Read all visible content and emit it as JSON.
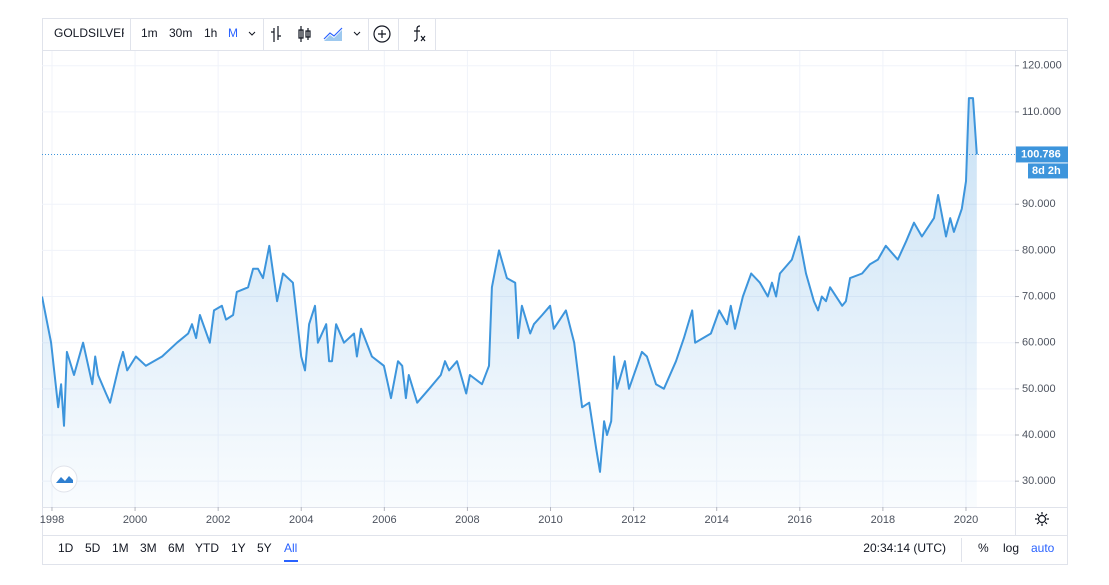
{
  "toolbar": {
    "symbol": "GOLDSILVER",
    "intervals": [
      "1m",
      "30m",
      "1h",
      "M"
    ]
  },
  "footer": {
    "ranges": [
      "1D",
      "5D",
      "1M",
      "3M",
      "6M",
      "YTD",
      "1Y",
      "5Y",
      "All"
    ],
    "clock": "20:34:14 (UTC)",
    "scale_options": [
      "%",
      "log",
      "auto"
    ]
  },
  "chart_data": {
    "type": "area",
    "color": "#3d95dc",
    "x": [
      1997.76,
      1997.98,
      1998.15,
      1998.22,
      1998.29,
      1998.36,
      1998.53,
      1998.75,
      1998.97,
      1999.04,
      1999.11,
      1999.3,
      1999.4,
      1999.61,
      1999.71,
      1999.81,
      2000.02,
      2000.26,
      2000.65,
      2001.01,
      2001.28,
      2001.37,
      2001.47,
      2001.56,
      2001.8,
      2001.9,
      2002.09,
      2002.19,
      2002.36,
      2002.45,
      2002.72,
      2002.84,
      2002.96,
      2003.08,
      2003.23,
      2003.42,
      2003.56,
      2003.8,
      2004.0,
      2004.09,
      2004.19,
      2004.33,
      2004.4,
      2004.6,
      2004.67,
      2004.74,
      2004.84,
      2005.03,
      2005.27,
      2005.34,
      2005.44,
      2005.7,
      2005.99,
      2006.16,
      2006.33,
      2006.43,
      2006.52,
      2006.59,
      2006.79,
      2007.08,
      2007.36,
      2007.46,
      2007.56,
      2007.75,
      2007.97,
      2008.06,
      2008.35,
      2008.52,
      2008.59,
      2008.76,
      2008.95,
      2009.15,
      2009.22,
      2009.31,
      2009.51,
      2009.6,
      2009.8,
      2009.99,
      2010.08,
      2010.37,
      2010.57,
      2010.76,
      2010.93,
      2011.1,
      2011.19,
      2011.29,
      2011.36,
      2011.46,
      2011.53,
      2011.6,
      2011.79,
      2011.89,
      2012.2,
      2012.32,
      2012.54,
      2012.73,
      2013.02,
      2013.21,
      2013.41,
      2013.48,
      2013.86,
      2014.06,
      2014.25,
      2014.34,
      2014.44,
      2014.63,
      2014.83,
      2015.04,
      2015.23,
      2015.33,
      2015.43,
      2015.52,
      2015.81,
      2015.98,
      2016.15,
      2016.34,
      2016.44,
      2016.53,
      2016.63,
      2016.73,
      2017.02,
      2017.11,
      2017.21,
      2017.5,
      2017.69,
      2017.88,
      2018.07,
      2018.36,
      2018.56,
      2018.75,
      2018.94,
      2019.23,
      2019.33,
      2019.52,
      2019.62,
      2019.71,
      2019.9,
      2020.0,
      2020.07,
      2020.17,
      2020.26
    ],
    "values": [
      70,
      60,
      46,
      51,
      42,
      58,
      53,
      60,
      51,
      57,
      53,
      49,
      47,
      55,
      58,
      54,
      57,
      55,
      57,
      60,
      62,
      64,
      61,
      66,
      60,
      67,
      68,
      65,
      66,
      71,
      72,
      76,
      76,
      74,
      81,
      69,
      75,
      73,
      57,
      54,
      64,
      68,
      60,
      64,
      56,
      56,
      64,
      60,
      62,
      57,
      63,
      57,
      55,
      48,
      56,
      55,
      48,
      53,
      47,
      50,
      53,
      56,
      54,
      56,
      49,
      53,
      51,
      55,
      72,
      80,
      74,
      73,
      61,
      68,
      62,
      64,
      66,
      68,
      63,
      67,
      60,
      46,
      47,
      37,
      32,
      43,
      40,
      43,
      57,
      50,
      56,
      50,
      58,
      57,
      51,
      50,
      56,
      61,
      67,
      60,
      62,
      67,
      64,
      68,
      63,
      70,
      75,
      73,
      70,
      73,
      70,
      75,
      78,
      83,
      75,
      69,
      67,
      70,
      69,
      72,
      68,
      69,
      74,
      75,
      77,
      78,
      81,
      78,
      82,
      86,
      83,
      87,
      92,
      83,
      87,
      84,
      89,
      95,
      113,
      113,
      100.786
    ],
    "countdown": "8d 2h",
    "xlim": [
      1997.76,
      2021.18
    ],
    "xticks": [
      1998,
      2000,
      2002,
      2004,
      2006,
      2008,
      2010,
      2012,
      2014,
      2016,
      2018,
      2020
    ],
    "ylim": [
      24.4,
      123.2
    ],
    "yticks": [
      {
        "value": 30,
        "label": "30.000"
      },
      {
        "value": 40,
        "label": "40.000"
      },
      {
        "value": 50,
        "label": "50.000"
      },
      {
        "value": 60,
        "label": "60.000"
      },
      {
        "value": 70,
        "label": "70.000"
      },
      {
        "value": 80,
        "label": "80.000"
      },
      {
        "value": 90,
        "label": "90.000"
      },
      {
        "value": 110,
        "label": "110.000"
      },
      {
        "value": 120,
        "label": "120.000"
      }
    ],
    "grid": true
  }
}
